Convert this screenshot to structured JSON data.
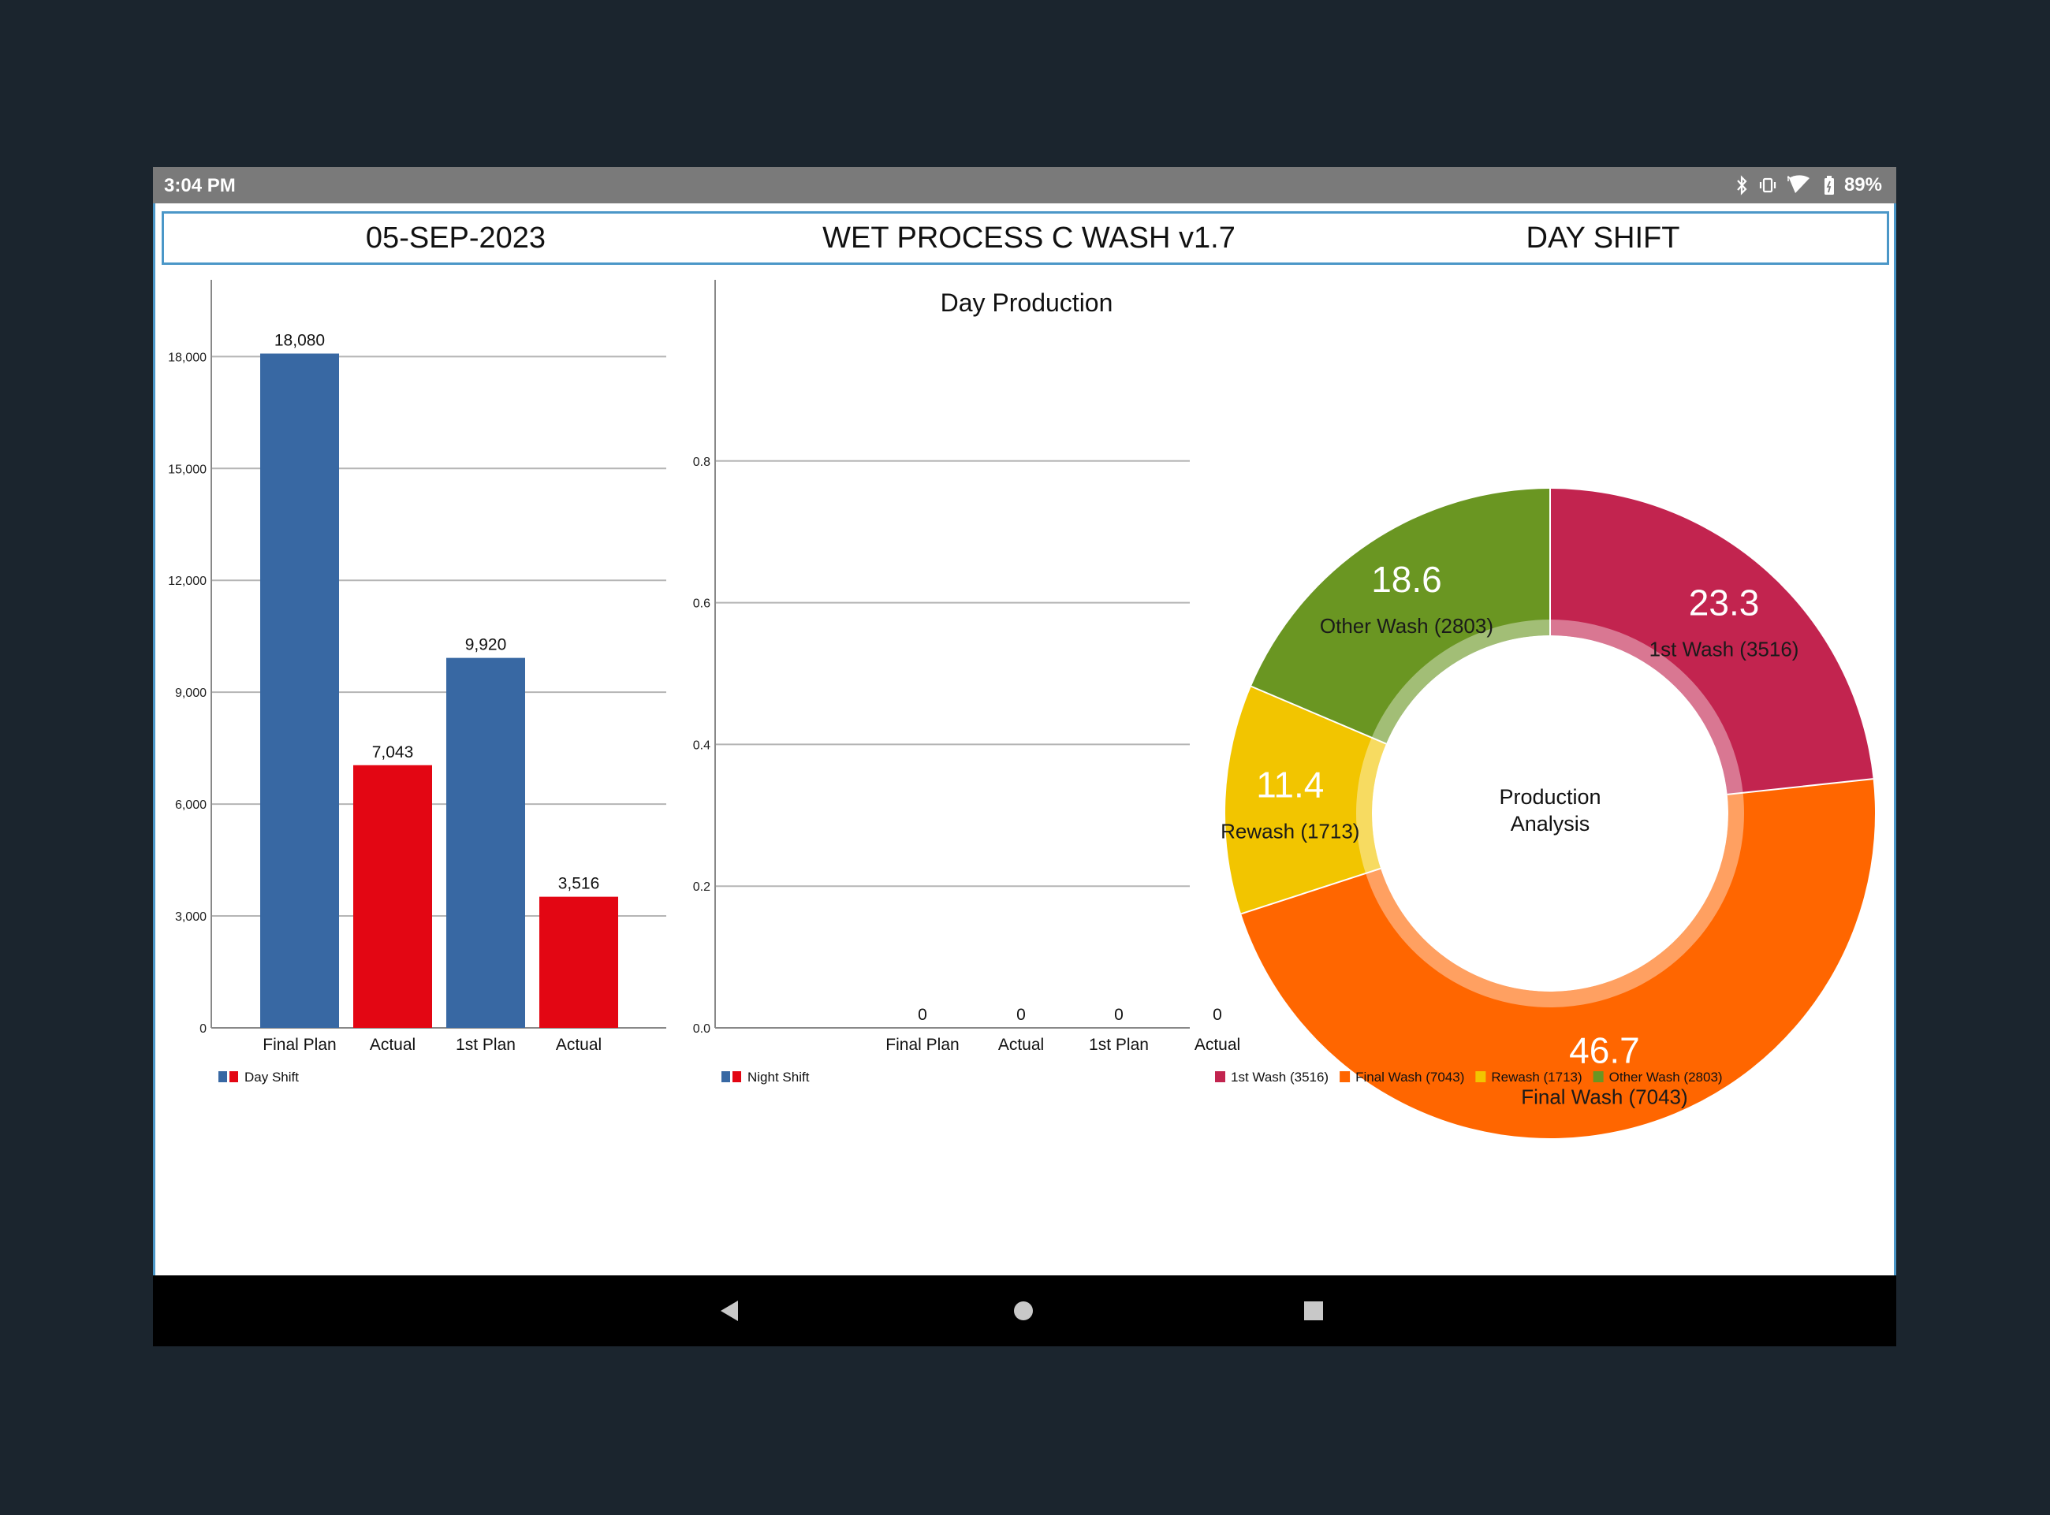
{
  "status_bar": {
    "time": "3:04 PM",
    "battery": "89%",
    "icons": [
      "bluetooth-icon",
      "vibrate-icon",
      "wifi-icon",
      "battery-icon"
    ]
  },
  "header": {
    "date": "05-SEP-2023",
    "title": "WET PROCESS C WASH v1.7",
    "shift": "DAY SHIFT"
  },
  "page_title": "Day Production",
  "colors": {
    "plan_blue": "#3868a3",
    "actual_red": "#e30613",
    "first_wash": "#c2244f",
    "final_wash": "#ff6600",
    "rewash": "#f2c500",
    "other_wash": "#6a9622",
    "frame_blue": "#4b97c8"
  },
  "chart_data": [
    {
      "type": "bar",
      "categories": [
        "Final Plan",
        "Actual",
        "1st Plan",
        "Actual"
      ],
      "values": [
        18080,
        7043,
        9920,
        3516
      ],
      "value_labels": [
        "18,080",
        "7,043",
        "9,920",
        "3,516"
      ],
      "bar_colors": [
        "#3868a3",
        "#e30613",
        "#3868a3",
        "#e30613"
      ],
      "ylim": [
        0,
        19000
      ],
      "yticks": [
        0,
        3000,
        6000,
        9000,
        12000,
        15000,
        18000
      ],
      "ytick_labels": [
        "0",
        "3,000",
        "6,000",
        "9,000",
        "12,000",
        "15,000",
        "18,000"
      ],
      "grid": true,
      "legend": {
        "label": "Day Shift",
        "position": "bottom-left"
      }
    },
    {
      "type": "bar",
      "categories": [
        "Final Plan",
        "Actual",
        "1st Plan",
        "Actual"
      ],
      "values": [
        0,
        0,
        0,
        0
      ],
      "value_labels": [
        "0",
        "0",
        "0",
        "0"
      ],
      "bar_colors": [
        "#3868a3",
        "#e30613",
        "#3868a3",
        "#e30613"
      ],
      "ylim": [
        0,
        1
      ],
      "yticks": [
        0,
        0.2,
        0.4,
        0.6,
        0.8
      ],
      "ytick_labels": [
        "0.0",
        "0.2",
        "0.4",
        "0.6",
        "0.8"
      ],
      "grid": true,
      "legend": {
        "label": "Night Shift",
        "position": "bottom-left"
      }
    },
    {
      "type": "pie",
      "center_label": [
        "Production",
        "Analysis"
      ],
      "slices": [
        {
          "label": "1st Wash (3516)",
          "percent": 23.3,
          "value": 3516,
          "percent_label": "23.3",
          "color": "#c2244f"
        },
        {
          "label": "Final Wash (7043)",
          "percent": 46.7,
          "value": 7043,
          "percent_label": "46.7",
          "color": "#ff6600"
        },
        {
          "label": "Rewash (1713)",
          "percent": 11.4,
          "value": 1713,
          "percent_label": "11.4",
          "color": "#f2c500"
        },
        {
          "label": "Other Wash (2803)",
          "percent": 18.6,
          "value": 2803,
          "percent_label": "18.6",
          "color": "#6a9622"
        }
      ],
      "legend": {
        "labels": [
          "1st Wash (3516)",
          "Final Wash (7043)",
          "Rewash (1713)",
          "Other Wash (2803)"
        ],
        "position": "bottom-left"
      }
    }
  ]
}
